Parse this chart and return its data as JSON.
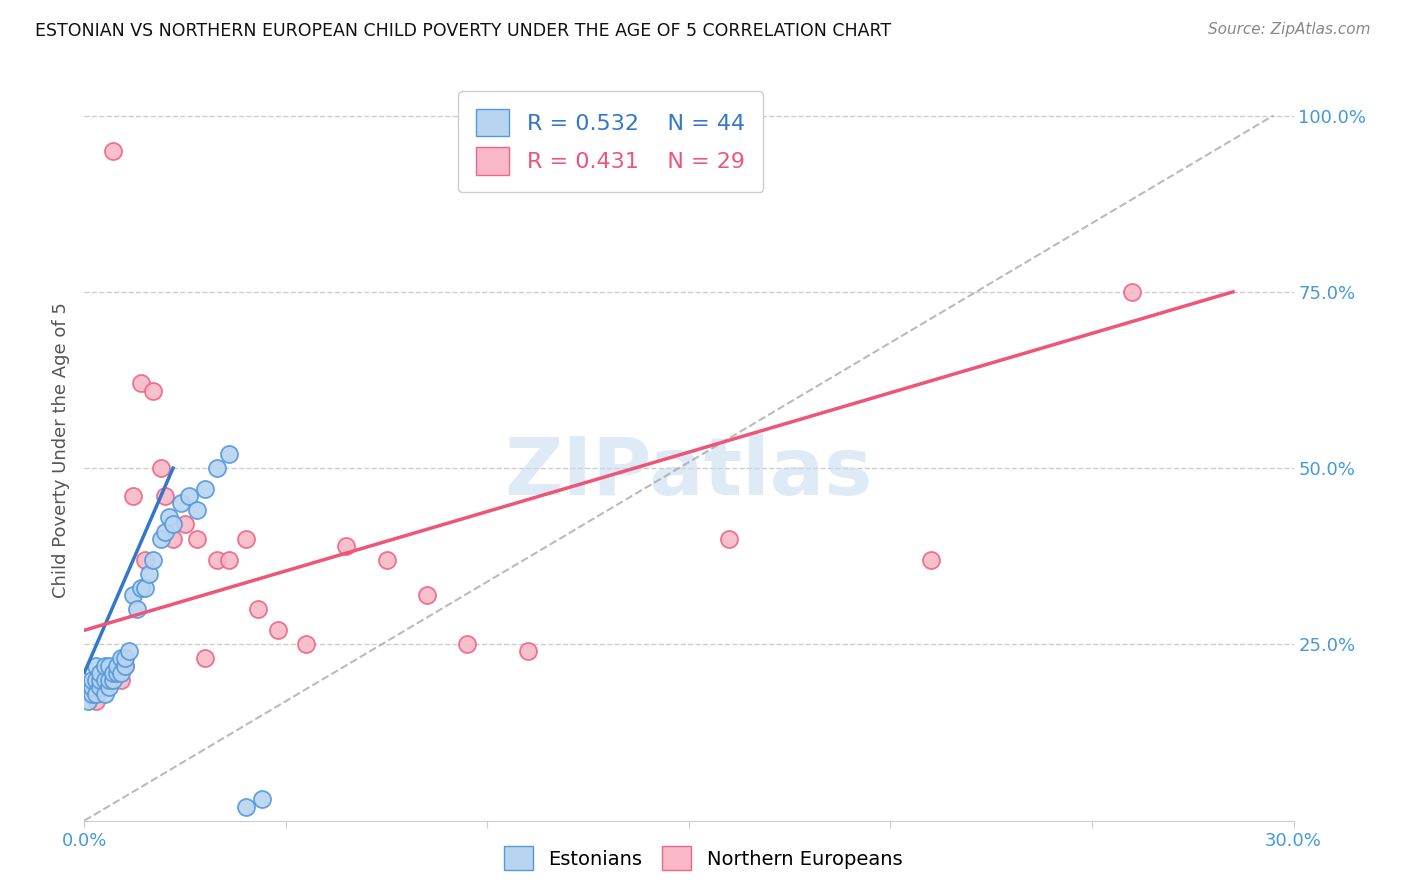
{
  "title": "ESTONIAN VS NORTHERN EUROPEAN CHILD POVERTY UNDER THE AGE OF 5 CORRELATION CHART",
  "source": "Source: ZipAtlas.com",
  "ylabel": "Child Poverty Under the Age of 5",
  "xlim": [
    0.0,
    0.3
  ],
  "ylim": [
    0.0,
    1.05
  ],
  "xtick_vals": [
    0.0,
    0.05,
    0.1,
    0.15,
    0.2,
    0.25,
    0.3
  ],
  "xticklabels": [
    "0.0%",
    "",
    "",
    "",
    "",
    "",
    "30.0%"
  ],
  "ytick_vals": [
    0.0,
    0.25,
    0.5,
    0.75,
    1.0
  ],
  "ytick_labels": [
    "",
    "25.0%",
    "50.0%",
    "75.0%",
    "100.0%"
  ],
  "grid_color": "#cccccc",
  "background_color": "#ffffff",
  "estonians_fill": "#b8d4f0",
  "estonians_edge": "#5599dd",
  "northern_fill": "#f8b8c8",
  "northern_edge": "#ee6688",
  "estonian_line_color": "#3377cc",
  "northern_line_color": "#ee5577",
  "ref_line_color": "#aaaaaa",
  "title_color": "#111111",
  "axis_label_color": "#4499dd",
  "watermark_color": "#c8dcf0",
  "legend_R1": "R = 0.532",
  "legend_N1": "N = 44",
  "legend_R2": "R = 0.431",
  "legend_N2": "N = 29",
  "estonians_x": [
    0.001,
    0.001,
    0.002,
    0.002,
    0.002,
    0.003,
    0.003,
    0.003,
    0.004,
    0.004,
    0.004,
    0.005,
    0.005,
    0.005,
    0.006,
    0.006,
    0.006,
    0.007,
    0.007,
    0.008,
    0.008,
    0.009,
    0.009,
    0.01,
    0.01,
    0.011,
    0.012,
    0.013,
    0.014,
    0.015,
    0.016,
    0.017,
    0.019,
    0.02,
    0.021,
    0.022,
    0.024,
    0.026,
    0.028,
    0.03,
    0.033,
    0.036,
    0.04,
    0.044
  ],
  "estonians_y": [
    0.17,
    0.19,
    0.18,
    0.19,
    0.2,
    0.18,
    0.2,
    0.22,
    0.19,
    0.2,
    0.21,
    0.18,
    0.2,
    0.22,
    0.19,
    0.2,
    0.22,
    0.2,
    0.21,
    0.21,
    0.22,
    0.21,
    0.23,
    0.22,
    0.23,
    0.24,
    0.32,
    0.3,
    0.33,
    0.33,
    0.35,
    0.37,
    0.4,
    0.41,
    0.43,
    0.42,
    0.45,
    0.46,
    0.44,
    0.47,
    0.5,
    0.52,
    0.02,
    0.03
  ],
  "northern_x": [
    0.003,
    0.005,
    0.007,
    0.009,
    0.01,
    0.012,
    0.014,
    0.015,
    0.017,
    0.019,
    0.02,
    0.022,
    0.025,
    0.028,
    0.03,
    0.033,
    0.036,
    0.04,
    0.043,
    0.048,
    0.055,
    0.065,
    0.075,
    0.085,
    0.095,
    0.11,
    0.16,
    0.21,
    0.26
  ],
  "northern_y": [
    0.17,
    0.19,
    0.95,
    0.2,
    0.22,
    0.46,
    0.62,
    0.37,
    0.61,
    0.5,
    0.46,
    0.4,
    0.42,
    0.4,
    0.23,
    0.37,
    0.37,
    0.4,
    0.3,
    0.27,
    0.25,
    0.39,
    0.37,
    0.32,
    0.25,
    0.24,
    0.4,
    0.37,
    0.75
  ],
  "est_line_x": [
    0.0,
    0.022
  ],
  "est_line_y": [
    0.21,
    0.5
  ],
  "nor_line_x": [
    0.0,
    0.285
  ],
  "nor_line_y": [
    0.27,
    0.75
  ],
  "ref_line_x": [
    0.0,
    0.295
  ],
  "ref_line_y": [
    0.0,
    1.0
  ]
}
